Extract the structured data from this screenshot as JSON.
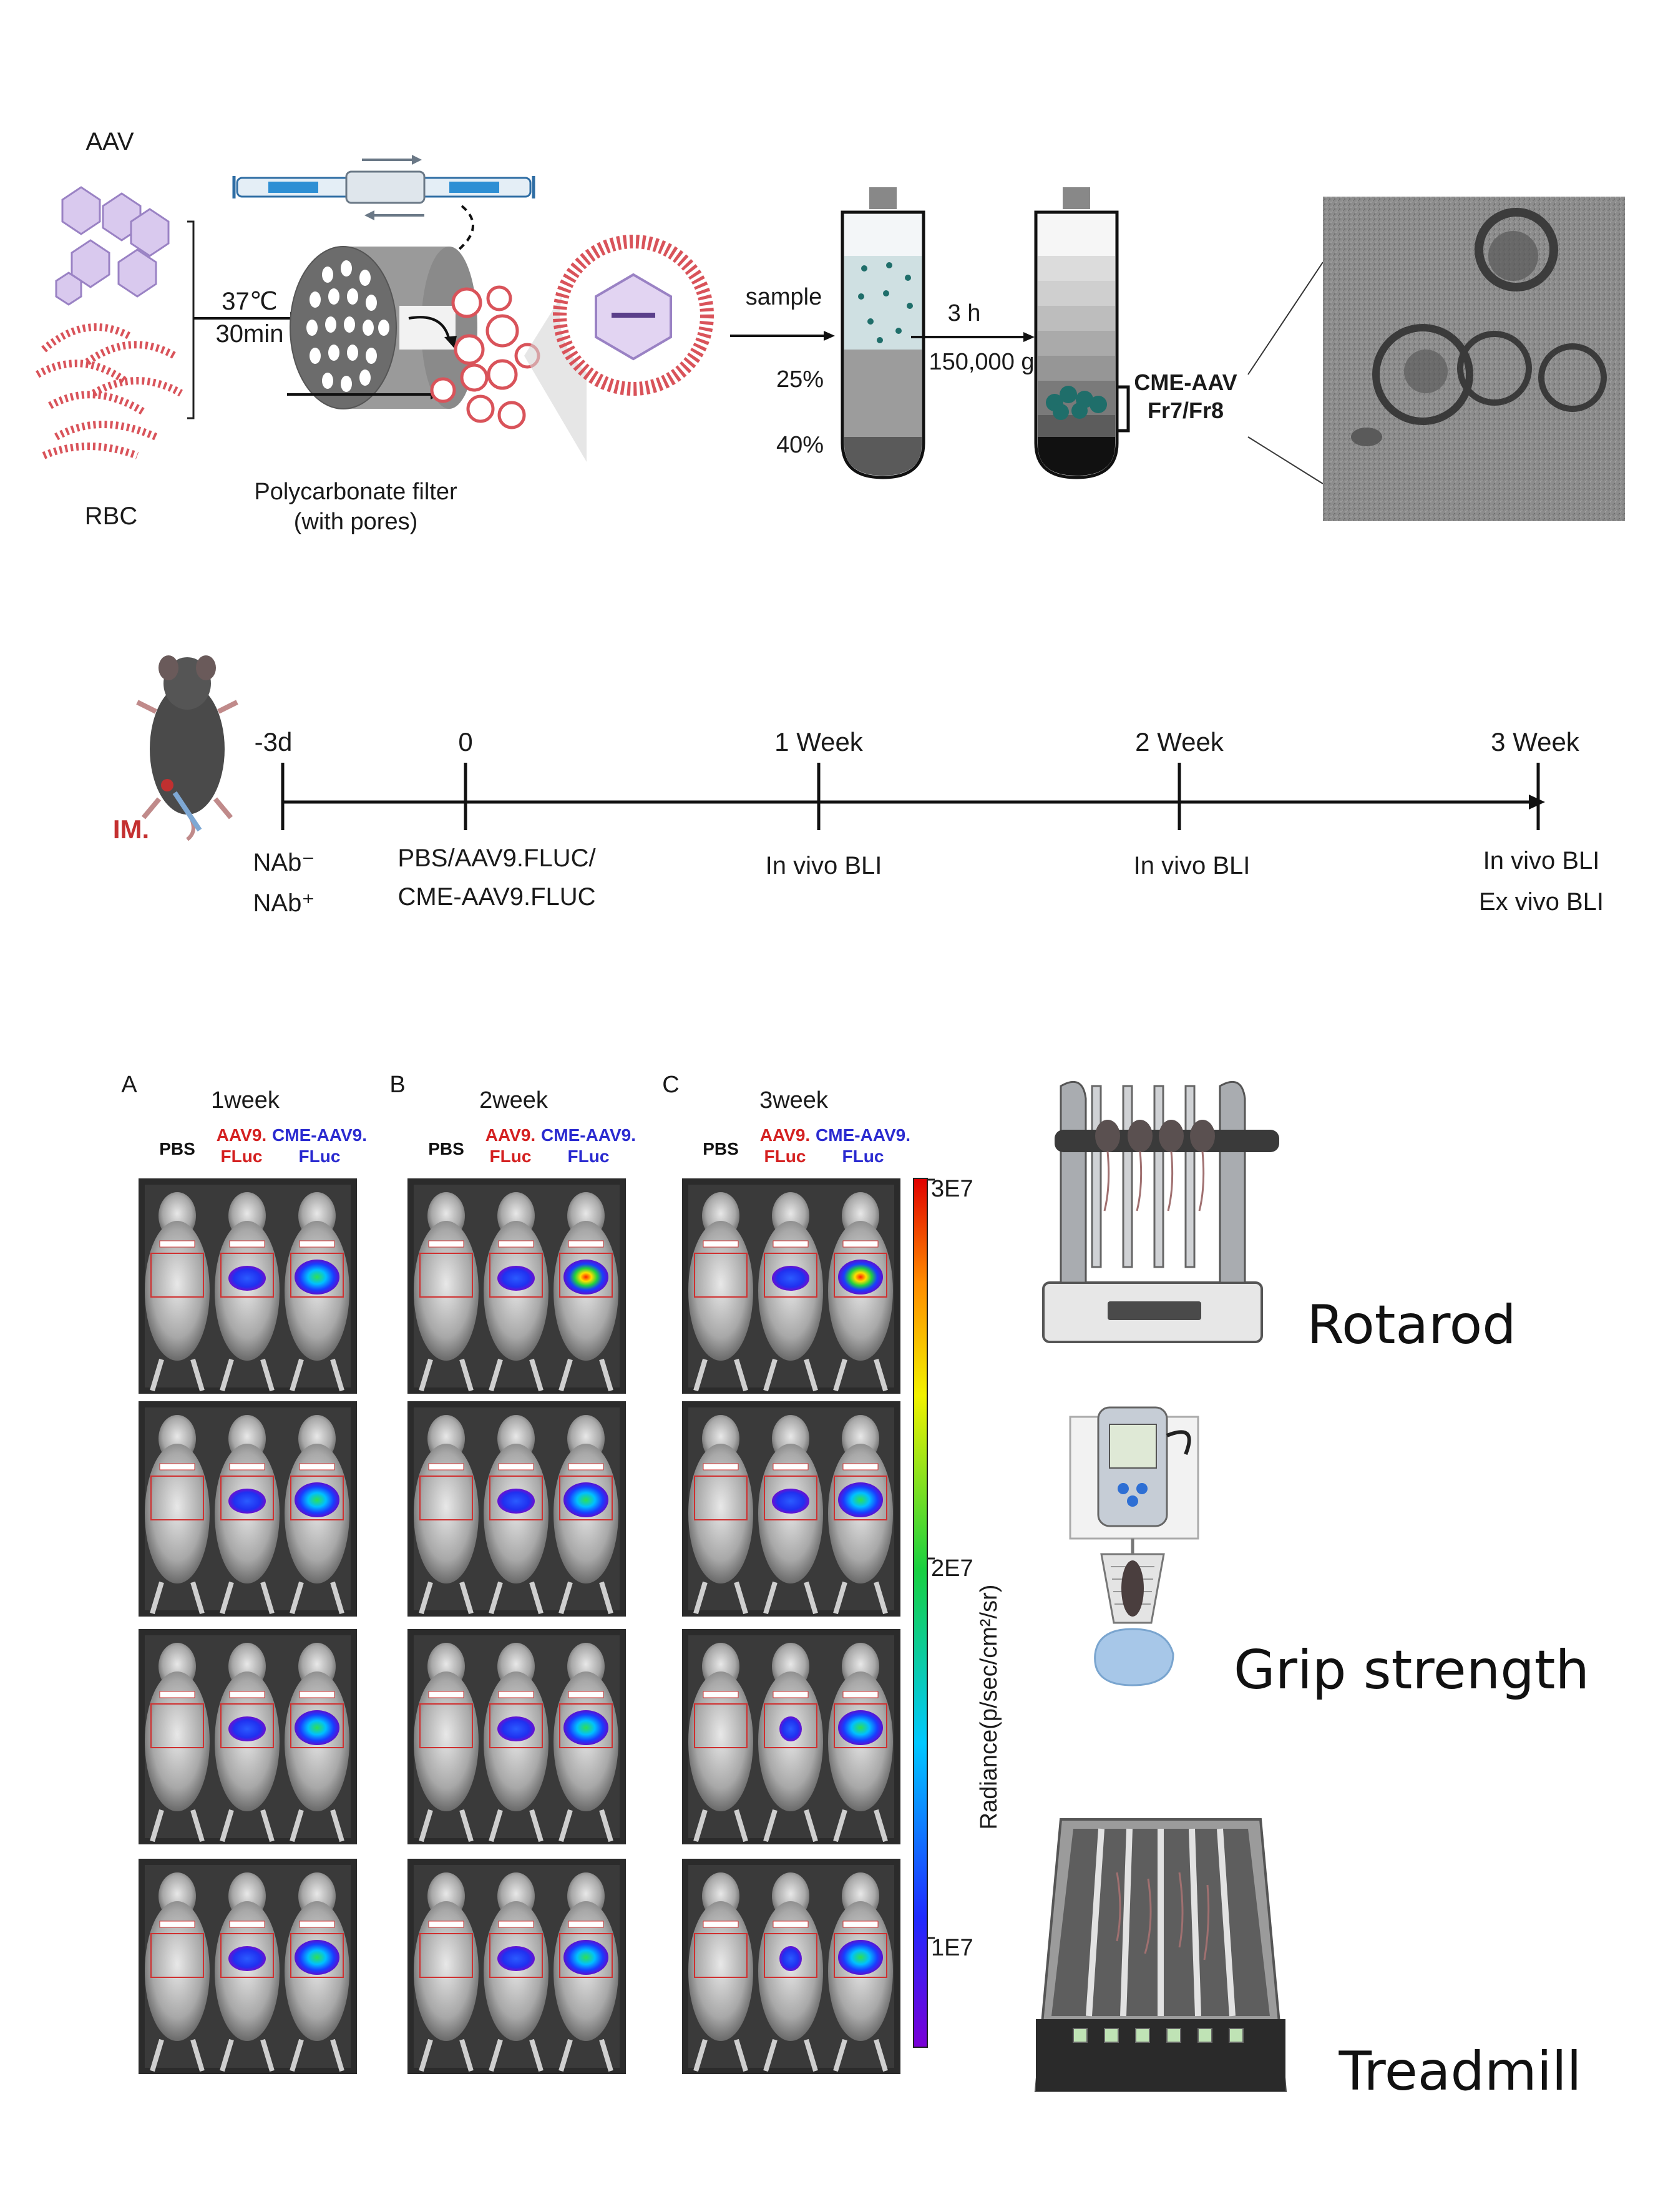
{
  "section1": {
    "aav_label": "AAV",
    "rbc_label": "RBC",
    "temp_label": "37℃",
    "time_label": "30min",
    "filter_label_line1": "Polycarbonate filter",
    "filter_label_line2": "(with pores)",
    "sample_label": "sample",
    "pct25_label": "25%",
    "pct40_label": "40%",
    "centrifuge_time": "3 h",
    "centrifuge_speed": "150,000 g",
    "fraction_title": "CME-AAV",
    "fraction_sub": "Fr7/Fr8"
  },
  "timeline": {
    "injection_label": "IM.",
    "points": [
      {
        "label": "-3d",
        "below_line1": "NAb⁻",
        "below_line2": "NAb⁺"
      },
      {
        "label": "0",
        "below_line1": "PBS/AAV9.FLUC/",
        "below_line2": "CME-AAV9.FLUC"
      },
      {
        "label": "1 Week",
        "below_line1": "In vivo BLI",
        "below_line2": ""
      },
      {
        "label": "2 Week",
        "below_line1": "In vivo BLI",
        "below_line2": ""
      },
      {
        "label": "3 Week",
        "below_line1": "In vivo BLI",
        "below_line2": "Ex vivo BLI"
      }
    ]
  },
  "bli": {
    "panels": [
      {
        "letter": "A",
        "title": "1week"
      },
      {
        "letter": "B",
        "title": "2week"
      },
      {
        "letter": "C",
        "title": "3week"
      }
    ],
    "group_pbs": "PBS",
    "group_aav_line1": "AAV9.",
    "group_aav_line2": "FLuc",
    "group_cme_line1": "CME-AAV9.",
    "group_cme_line2": "FLuc",
    "colorbar_max": "3E7",
    "colorbar_mid": "2E7",
    "colorbar_min": "1E7",
    "colorbar_label": "Radiance(p/sec/cm²/sr)",
    "colors": {
      "aav_red": "#d42020",
      "cme_blue": "#2a2ad0"
    }
  },
  "behavior": {
    "rotarod": "Rotarod",
    "grip": "Grip strength",
    "treadmill": "Treadmill"
  }
}
